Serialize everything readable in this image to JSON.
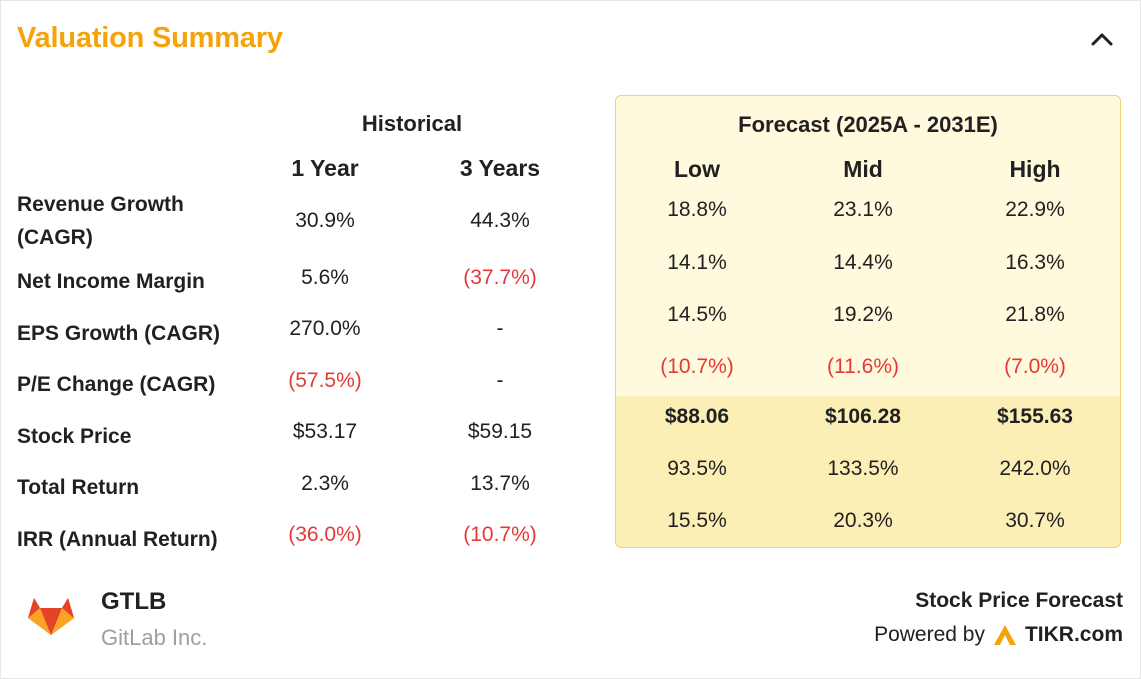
{
  "header": {
    "title": "Valuation Summary"
  },
  "historical": {
    "title": "Historical",
    "columns": [
      "1 Year",
      "3 Years"
    ]
  },
  "forecast": {
    "title": "Forecast (2025A - 2031E)",
    "columns": [
      "Low",
      "Mid",
      "High"
    ]
  },
  "rows": [
    {
      "label": "Revenue Growth (CAGR)",
      "label_lines": [
        "Revenue Growth",
        "(CAGR)"
      ],
      "hist": [
        "30.9%",
        "44.3%"
      ],
      "forecast": [
        "18.8%",
        "23.1%",
        "22.9%"
      ],
      "hist_neg": [
        false,
        false
      ],
      "forecast_neg": [
        false,
        false,
        false
      ]
    },
    {
      "label": "Net Income Margin",
      "hist": [
        "5.6%",
        "(37.7%)"
      ],
      "forecast": [
        "14.1%",
        "14.4%",
        "16.3%"
      ],
      "hist_neg": [
        false,
        true
      ],
      "forecast_neg": [
        false,
        false,
        false
      ]
    },
    {
      "label": "EPS Growth (CAGR)",
      "hist": [
        "270.0%",
        "-"
      ],
      "forecast": [
        "14.5%",
        "19.2%",
        "21.8%"
      ],
      "hist_neg": [
        false,
        false
      ],
      "forecast_neg": [
        false,
        false,
        false
      ]
    },
    {
      "label": "P/E Change (CAGR)",
      "hist": [
        "(57.5%)",
        "-"
      ],
      "forecast": [
        "(10.7%)",
        "(11.6%)",
        "(7.0%)"
      ],
      "hist_neg": [
        true,
        false
      ],
      "forecast_neg": [
        true,
        true,
        true
      ]
    },
    {
      "label": "Stock Price",
      "hist": [
        "$53.17",
        "$59.15"
      ],
      "forecast": [
        "$88.06",
        "$106.28",
        "$155.63"
      ],
      "hist_neg": [
        false,
        false
      ],
      "forecast_neg": [
        false,
        false,
        false
      ]
    },
    {
      "label": "Total Return",
      "hist": [
        "2.3%",
        "13.7%"
      ],
      "forecast": [
        "93.5%",
        "133.5%",
        "242.0%"
      ],
      "hist_neg": [
        false,
        false
      ],
      "forecast_neg": [
        false,
        false,
        false
      ]
    },
    {
      "label": "IRR (Annual Return)",
      "hist": [
        "(36.0%)",
        "(10.7%)"
      ],
      "forecast": [
        "15.5%",
        "20.3%",
        "30.7%"
      ],
      "hist_neg": [
        true,
        true
      ],
      "forecast_neg": [
        false,
        false,
        false
      ]
    }
  ],
  "company": {
    "ticker": "GTLB",
    "name": "GitLab Inc."
  },
  "footer": {
    "label": "Stock Price Forecast",
    "powered_by": "Powered by",
    "brand": "TIKR.com"
  },
  "colors": {
    "accent": "#f5a20b",
    "negative": "#e53935",
    "forecast_bg": "#fff9dd",
    "forecast_bg_lower": "#fcefb6",
    "forecast_border": "#efd27a"
  },
  "icons": {
    "collapse": "chevron-up-icon",
    "logo": "gitlab-logo-icon",
    "brand": "tikr-logo-icon"
  }
}
